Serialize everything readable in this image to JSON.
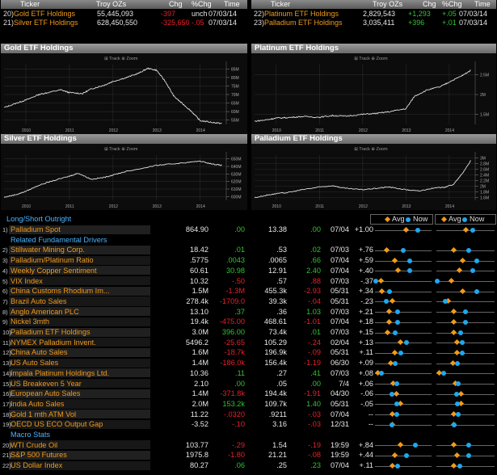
{
  "colors": {
    "orange": "#f29a1a",
    "blue": "#1ea8f0",
    "green": "#2fc42f",
    "red": "#e8202a",
    "white": "#e8e8e8"
  },
  "top_left_table": {
    "headers": [
      "Ticker",
      "Troy OZs",
      "Chg",
      "%Chg",
      "Time"
    ],
    "rows": [
      {
        "num": "20)",
        "name": "Gold ETF Holdings",
        "oz": "55,445,093",
        "chg": "-397",
        "pct": "unch",
        "time": "07/03/14"
      },
      {
        "num": "21)",
        "name": "Silver ETF Holdings",
        "oz": "628,450,550",
        "chg": "-325,650",
        "pct": "-.05",
        "time": "07/03/14"
      }
    ]
  },
  "top_right_table": {
    "headers": [
      "Ticker",
      "Troy OZs",
      "Chg",
      "%Chg",
      "Time"
    ],
    "rows": [
      {
        "num": "22)",
        "name": "Platinum ETF Holdings",
        "oz": "2,829,543",
        "chg": "+1,293",
        "pct": "+.05",
        "time": "07/03/14"
      },
      {
        "num": "23)",
        "name": "Palladium ETF Holdings",
        "oz": "3,035,411",
        "chg": "+396",
        "pct": "+.01",
        "time": "07/03/14"
      }
    ]
  },
  "chart_tools": {
    "track": "Track",
    "zoom": "Zoom"
  },
  "chart_data": [
    {
      "type": "line",
      "title": "Gold ETF Holdings",
      "x_ticks": [
        "2010",
        "2011",
        "2012",
        "2013",
        "2014"
      ],
      "y_ticks": [
        "85M",
        "80M",
        "75M",
        "70M",
        "65M",
        "60M",
        "55M"
      ],
      "ylim": [
        55000000,
        87000000
      ],
      "x": [
        2009.5,
        2009.8,
        2010.0,
        2010.3,
        2010.5,
        2010.8,
        2011.0,
        2011.3,
        2011.5,
        2011.8,
        2012.0,
        2012.3,
        2012.6,
        2012.8,
        2013.0,
        2013.2,
        2013.4,
        2013.6,
        2013.8,
        2014.0,
        2014.3,
        2014.5
      ],
      "values": [
        64000000,
        66500000,
        68000000,
        71000000,
        72000000,
        73500000,
        72000000,
        71500000,
        74000000,
        76000000,
        78000000,
        80000000,
        82500000,
        85000000,
        84000000,
        78000000,
        70000000,
        66000000,
        62000000,
        57000000,
        56000000,
        55500000
      ]
    },
    {
      "type": "line",
      "title": "Platinum ETF Holdings",
      "x_ticks": [
        "2010",
        "2011",
        "2012",
        "2013",
        "2014"
      ],
      "y_ticks": [
        "2.5M",
        "2M",
        "1.5M"
      ],
      "ylim": [
        1100000,
        3000000
      ],
      "x": [
        2009.5,
        2009.8,
        2010.0,
        2010.3,
        2010.6,
        2011.0,
        2011.3,
        2011.6,
        2012.0,
        2012.3,
        2012.6,
        2013.0,
        2013.2,
        2013.5,
        2013.8,
        2014.0,
        2014.3,
        2014.5
      ],
      "values": [
        1200000,
        1250000,
        1300000,
        1320000,
        1350000,
        1330000,
        1380000,
        1360000,
        1420000,
        1450000,
        1500000,
        1600000,
        2000000,
        2200000,
        2300000,
        2450000,
        2650000,
        2820000
      ]
    },
    {
      "type": "line",
      "title": "Silver ETF Holdings",
      "x_ticks": [
        "2010",
        "2011",
        "2012",
        "2013",
        "2014"
      ],
      "y_ticks": [
        "650M",
        "640M",
        "630M",
        "620M",
        "610M",
        "600M"
      ],
      "ylim": [
        580000000,
        655000000
      ],
      "x": [
        2009.5,
        2009.8,
        2010.0,
        2010.3,
        2010.6,
        2011.0,
        2011.2,
        2011.5,
        2011.8,
        2012.0,
        2012.3,
        2012.6,
        2013.0,
        2013.3,
        2013.6,
        2014.0,
        2014.3,
        2014.5
      ],
      "values": [
        585000000,
        590000000,
        595000000,
        605000000,
        612000000,
        620000000,
        625000000,
        615000000,
        618000000,
        622000000,
        628000000,
        632000000,
        638000000,
        640000000,
        642000000,
        645000000,
        640000000,
        638000000
      ]
    },
    {
      "type": "line",
      "title": "Palladium ETF Holdings",
      "x_ticks": [
        "2010",
        "2011",
        "2012",
        "2013",
        "2014"
      ],
      "y_ticks": [
        "3M",
        "2.8M",
        "2.6M",
        "2.4M",
        "2.2M",
        "2M",
        "1.8M",
        "1.6M"
      ],
      "ylim": [
        1500000,
        3200000
      ],
      "x": [
        2009.5,
        2009.8,
        2010.0,
        2010.3,
        2010.6,
        2011.0,
        2011.3,
        2011.6,
        2012.0,
        2012.3,
        2012.6,
        2013.0,
        2013.3,
        2013.6,
        2013.9,
        2014.1,
        2014.3,
        2014.5
      ],
      "values": [
        1600000,
        1700000,
        1750000,
        1800000,
        1900000,
        2000000,
        2050000,
        1950000,
        1900000,
        1950000,
        2000000,
        1900000,
        1850000,
        1950000,
        2000000,
        2100000,
        2500000,
        3000000
      ]
    }
  ],
  "lower": {
    "title": "Long/Short Outright",
    "legend": {
      "avg": "Avg",
      "now": "Now"
    },
    "rows": [
      {
        "kind": "data",
        "num": "1)",
        "name": "Palladium Spot",
        "v1": "864.90",
        "v2": ".00",
        "v3": "13.38",
        "v4": ".00",
        "date": "07/04",
        "z": "+1.00",
        "v2c": "green",
        "v4c": "green",
        "marks": [
          0.55,
          0.75,
          0.5,
          0.62
        ]
      },
      {
        "kind": "section",
        "name": "Related Fundamental Drivers"
      },
      {
        "kind": "data",
        "num": "2)",
        "name": "Stillwater Mining Corp.",
        "v1": "18.42",
        "v2": ".01",
        "v3": ".53",
        "v4": ".02",
        "date": "07/03",
        "z": "+.76",
        "v2c": "green",
        "v4c": "green",
        "marks": [
          0.2,
          0.5,
          0.3,
          0.55
        ]
      },
      {
        "kind": "data",
        "num": "3)",
        "name": "Palladium/Platinum Ratio",
        "v1": ".5775",
        "v2": ".0043",
        "v3": ".0065",
        "v4": ".66",
        "date": "07/04",
        "z": "+.59",
        "v2c": "green",
        "v4c": "green",
        "marks": [
          0.35,
          0.62,
          0.45,
          0.7
        ]
      },
      {
        "kind": "data",
        "num": "4)",
        "name": "Weekly Copper Sentiment",
        "v1": "60.61",
        "v2": "30.98",
        "v3": "12.91",
        "v4": "2.40",
        "date": "07/04",
        "z": "+.40",
        "v2c": "green",
        "v4c": "green",
        "marks": [
          0.4,
          0.62,
          0.4,
          0.62
        ]
      },
      {
        "kind": "data",
        "num": "5)",
        "name": "VIX Index",
        "v1": "10.32",
        "v2": "-.50",
        "v3": ".57",
        "v4": ".88",
        "date": "07/03",
        "z": "-.37",
        "v2c": "red",
        "v4c": "red",
        "marks": [
          0.1,
          0.02,
          0.25,
          0.02
        ]
      },
      {
        "kind": "data",
        "num": "6)",
        "name": "China Customs Rhodium Im...",
        "v1": "1.5M",
        "v2": "-1.3M",
        "v3": "455.3k",
        "v4": "-2.93",
        "date": "05/31",
        "z": "+.34",
        "v2c": "red",
        "v4c": "red",
        "marks": [
          0.12,
          0.25,
          0.45,
          0.7
        ]
      },
      {
        "kind": "data",
        "num": "7)",
        "name": "Brazil Auto Sales",
        "v1": "278.4k",
        "v2": "-1709.0",
        "v3": "39.3k",
        "v4": "-.04",
        "date": "05/31",
        "z": "-.23",
        "v2c": "red",
        "v4c": "red",
        "marks": [
          0.3,
          0.2,
          0.2,
          0.15
        ]
      },
      {
        "kind": "data",
        "num": "8)",
        "name": "Anglo American PLC",
        "v1": "13.10",
        "v2": ".37",
        "v3": ".36",
        "v4": "1.03",
        "date": "07/03",
        "z": "+.21",
        "v2c": "green",
        "v4c": "green",
        "marks": [
          0.25,
          0.4,
          0.3,
          0.5
        ]
      },
      {
        "kind": "data",
        "num": "9)",
        "name": "Nickel 3mth",
        "v1": "19.4k",
        "v2": "-475.00",
        "v3": "468.61",
        "v4": "-1.01",
        "date": "07/04",
        "z": "+.18",
        "v2c": "red",
        "v4c": "red",
        "marks": [
          0.25,
          0.4,
          0.3,
          0.5
        ]
      },
      {
        "kind": "data",
        "num": "10)",
        "name": "Palladium ETF Holdings",
        "v1": "3.0M",
        "v2": "396.00",
        "v3": "73.4k",
        "v4": ".01",
        "date": "07/03",
        "z": "+.15",
        "v2c": "green",
        "v4c": "green",
        "marks": [
          0.22,
          0.35,
          0.3,
          0.42
        ]
      },
      {
        "kind": "data",
        "num": "11)",
        "name": "NYMEX Palladium Invent.",
        "v1": "5496.2",
        "v2": "-25.65",
        "v3": "105.29",
        "v4": "-.24",
        "date": "02/04",
        "z": "+.13",
        "v2c": "red",
        "v4c": "red",
        "marks": [
          0.45,
          0.55,
          0.35,
          0.45
        ]
      },
      {
        "kind": "data",
        "num": "12)",
        "name": "China Auto Sales",
        "v1": "1.6M",
        "v2": "-18.7k",
        "v3": "196.9k",
        "v4": "-.09",
        "date": "05/31",
        "z": "+.11",
        "v2c": "red",
        "v4c": "red",
        "marks": [
          0.35,
          0.45,
          0.35,
          0.45
        ]
      },
      {
        "kind": "data",
        "num": "13)",
        "name": "US Auto Sales",
        "v1": "1.4M",
        "v2": "-186.0k",
        "v3": "156.4k",
        "v4": "-1.19",
        "date": "06/30",
        "z": "+.09",
        "v2c": "red",
        "v4c": "red",
        "marks": [
          0.28,
          0.36,
          0.28,
          0.36
        ]
      },
      {
        "kind": "data",
        "num": "14)",
        "name": "Impala Platinum Holdings Ltd.",
        "v1": "10.36",
        "v2": ".11",
        "v3": ".27",
        "v4": ".41",
        "date": "07/03",
        "z": "+.08",
        "v2c": "green",
        "v4c": "green",
        "marks": [
          0.05,
          0.12,
          0.05,
          0.12
        ]
      },
      {
        "kind": "data",
        "num": "15)",
        "name": "US Breakeven 5 Year",
        "v1": "2.10",
        "v2": ".00",
        "v3": ".05",
        "v4": ".00",
        "date": "7/4",
        "z": "+.06",
        "v2c": "green",
        "v4c": "green",
        "marks": [
          0.32,
          0.38,
          0.32,
          0.38
        ]
      },
      {
        "kind": "data",
        "num": "16)",
        "name": "European Auto Sales",
        "v1": "1.4M",
        "v2": "-371.8k",
        "v3": "194.4k",
        "v4": "-1.91",
        "date": "04/30",
        "z": "-.06",
        "v2c": "red",
        "v4c": "red",
        "marks": [
          0.38,
          0.3,
          0.42,
          0.35
        ]
      },
      {
        "kind": "data",
        "num": "17)",
        "name": "India Auto Sales",
        "v1": "2.0M",
        "v2": "153.2k",
        "v3": "109.7k",
        "v4": "1.40",
        "date": "05/31",
        "z": "-.05",
        "v2c": "green",
        "v4c": "green",
        "marks": [
          0.45,
          0.38,
          0.42,
          0.36
        ]
      },
      {
        "kind": "data",
        "num": "18)",
        "name": "Gold 1 mth ATM Vol",
        "v1": "11.22",
        "v2": "-.0320",
        "v3": ".9211",
        "v4": "-.03",
        "date": "07/04",
        "z": "--",
        "v2c": "red",
        "v4c": "red",
        "marks": [
          0.3,
          0.38,
          0.3,
          0.38
        ]
      },
      {
        "kind": "data",
        "num": "19)",
        "name": "OECD US ECO Output Gap",
        "v1": "-3.52",
        "v2": "-.10",
        "v3": "3.16",
        "v4": "-.03",
        "date": "12/31",
        "z": "--",
        "v2c": "red",
        "v4c": "red",
        "marks": [
          0.3,
          0.3,
          0.3,
          0.3
        ]
      },
      {
        "kind": "section",
        "name": "Macro Stats"
      },
      {
        "kind": "data",
        "num": "20)",
        "name": "WTI Crude Oil",
        "v1": "103.77",
        "v2": "-.29",
        "v3": "1.54",
        "v4": "-.19",
        "date": "19:59",
        "z": "+.84",
        "v2c": "red",
        "v4c": "red",
        "marks": [
          0.45,
          0.72,
          0.3,
          0.55
        ]
      },
      {
        "kind": "data",
        "num": "21)",
        "name": "S&P 500 Futures",
        "v1": "1975.8",
        "v2": "-1.80",
        "v3": "21.21",
        "v4": "-.08",
        "date": "19:59",
        "z": "+.44",
        "v2c": "red",
        "v4c": "red",
        "marks": [
          0.35,
          0.55,
          0.35,
          0.55
        ]
      },
      {
        "kind": "data",
        "num": "22)",
        "name": "US Dollar Index",
        "v1": "80.27",
        "v2": ".06",
        "v3": ".25",
        "v4": ".23",
        "date": "07/04",
        "z": "+.11",
        "v2c": "green",
        "v4c": "green",
        "marks": [
          0.3,
          0.4,
          0.3,
          0.4
        ]
      }
    ]
  }
}
